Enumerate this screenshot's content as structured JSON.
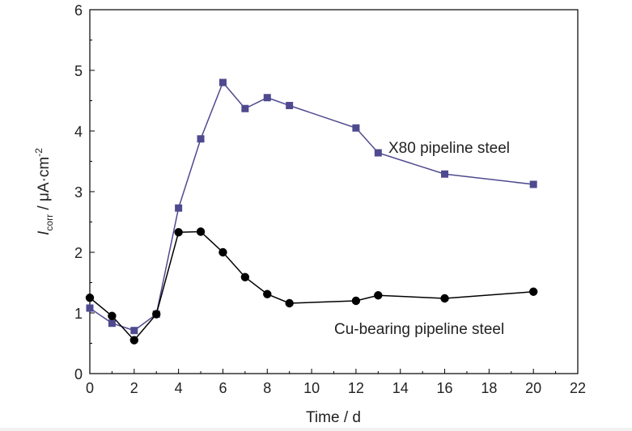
{
  "chart_data": {
    "type": "line",
    "xlabel": "Time / d",
    "ylabel": {
      "symbol": "I",
      "subscript": "corr",
      "unit_pre": " / μA·cm",
      "unit_sup": "-2"
    },
    "xlim": [
      0,
      22
    ],
    "ylim": [
      0,
      6
    ],
    "x_ticks": [
      "0",
      "2",
      "4",
      "6",
      "8",
      "10",
      "12",
      "14",
      "16",
      "18",
      "20",
      "22"
    ],
    "y_ticks": [
      "0",
      "1",
      "2",
      "3",
      "4",
      "5",
      "6"
    ],
    "grid": false,
    "series": [
      {
        "name": "X80 pipeline steel",
        "color": "#4f4a8f",
        "marker": "square",
        "x": [
          0,
          1,
          2,
          3,
          4,
          5,
          6,
          7,
          8,
          9,
          12,
          13,
          16,
          20
        ],
        "y": [
          1.08,
          0.83,
          0.71,
          0.98,
          2.73,
          3.87,
          4.8,
          4.37,
          4.55,
          4.42,
          4.05,
          3.64,
          3.29,
          3.12
        ]
      },
      {
        "name": "Cu-bearing pipeline steel",
        "color": "#000000",
        "marker": "circle",
        "x": [
          0,
          1,
          2,
          3,
          4,
          5,
          6,
          7,
          8,
          9,
          12,
          13,
          16,
          20
        ],
        "y": [
          1.25,
          0.95,
          0.55,
          0.98,
          2.33,
          2.34,
          2.0,
          1.59,
          1.31,
          1.16,
          1.2,
          1.29,
          1.24,
          1.35
        ]
      }
    ],
    "annotations": [
      "X80 pipeline steel",
      "Cu-bearing pipeline steel"
    ]
  }
}
